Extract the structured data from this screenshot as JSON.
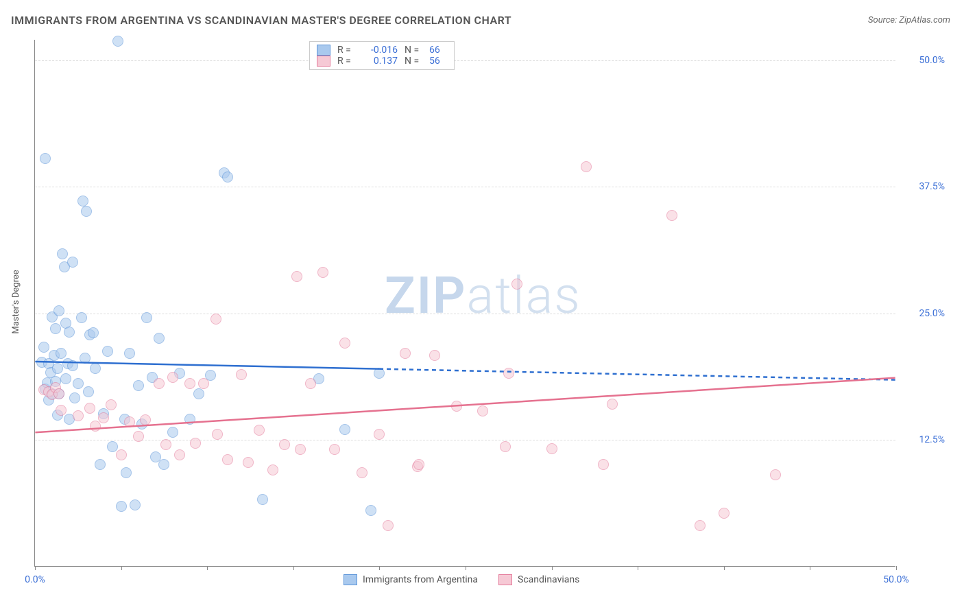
{
  "title": "IMMIGRANTS FROM ARGENTINA VS SCANDINAVIAN MASTER'S DEGREE CORRELATION CHART",
  "source": "Source: ZipAtlas.com",
  "y_axis_label": "Master's Degree",
  "watermark": {
    "prefix": "ZIP",
    "suffix": "atlas"
  },
  "chart": {
    "type": "scatter",
    "xlim": [
      0,
      50
    ],
    "ylim": [
      0,
      52
    ],
    "xtick_positions": [
      0,
      5,
      10,
      15,
      20,
      25,
      30,
      35,
      40,
      45,
      50
    ],
    "xtick_labels": {
      "0": "0.0%",
      "50": "50.0%"
    },
    "ytick_positions": [
      12.5,
      25.0,
      37.5,
      50.0
    ],
    "ytick_labels": [
      "12.5%",
      "25.0%",
      "37.5%",
      "50.0%"
    ],
    "grid_color": "#dddddd",
    "axis_color": "#888888",
    "background_color": "#ffffff",
    "marker_radius": 8,
    "marker_opacity": 0.55,
    "series": [
      {
        "name": "Immigrants from Argentina",
        "color_fill": "#a9c9ee",
        "color_stroke": "#5a93d8",
        "R": "-0.016",
        "N": "66",
        "trend": {
          "y_at_x0": 20.2,
          "y_at_x50": 18.4,
          "solid_until_x": 20,
          "color": "#2e6fd0",
          "width": 2.5
        },
        "points": [
          [
            0.4,
            20.1
          ],
          [
            0.5,
            21.6
          ],
          [
            0.6,
            17.5
          ],
          [
            0.6,
            40.2
          ],
          [
            0.7,
            18.1
          ],
          [
            0.8,
            20.0
          ],
          [
            0.8,
            16.4
          ],
          [
            0.9,
            19.1
          ],
          [
            1.0,
            24.6
          ],
          [
            1.0,
            17.0
          ],
          [
            1.1,
            20.8
          ],
          [
            1.2,
            23.4
          ],
          [
            1.2,
            18.2
          ],
          [
            1.3,
            19.5
          ],
          [
            1.3,
            14.9
          ],
          [
            1.4,
            17.0
          ],
          [
            1.4,
            25.2
          ],
          [
            1.5,
            21.0
          ],
          [
            1.6,
            30.8
          ],
          [
            1.7,
            29.5
          ],
          [
            1.8,
            24.0
          ],
          [
            1.8,
            18.5
          ],
          [
            1.9,
            20.0
          ],
          [
            2.0,
            23.1
          ],
          [
            2.0,
            14.5
          ],
          [
            2.2,
            30.0
          ],
          [
            2.2,
            19.8
          ],
          [
            2.3,
            16.6
          ],
          [
            2.5,
            18.0
          ],
          [
            2.7,
            24.5
          ],
          [
            2.8,
            36.0
          ],
          [
            2.9,
            20.5
          ],
          [
            3.0,
            35.0
          ],
          [
            3.1,
            17.2
          ],
          [
            3.2,
            22.8
          ],
          [
            3.4,
            23.0
          ],
          [
            3.5,
            19.5
          ],
          [
            3.8,
            10.0
          ],
          [
            4.0,
            15.0
          ],
          [
            4.2,
            21.2
          ],
          [
            4.5,
            11.8
          ],
          [
            4.8,
            51.8
          ],
          [
            5.0,
            5.9
          ],
          [
            5.2,
            14.5
          ],
          [
            5.3,
            9.2
          ],
          [
            5.5,
            21.0
          ],
          [
            5.8,
            6.0
          ],
          [
            6.0,
            17.8
          ],
          [
            6.2,
            14.0
          ],
          [
            6.5,
            24.5
          ],
          [
            6.8,
            18.6
          ],
          [
            7.0,
            10.8
          ],
          [
            7.2,
            22.5
          ],
          [
            7.5,
            10.0
          ],
          [
            8.0,
            13.2
          ],
          [
            8.4,
            19.0
          ],
          [
            9.0,
            14.5
          ],
          [
            9.5,
            17.0
          ],
          [
            10.2,
            18.8
          ],
          [
            11.0,
            38.8
          ],
          [
            11.2,
            38.4
          ],
          [
            13.2,
            6.6
          ],
          [
            16.5,
            18.5
          ],
          [
            18.0,
            13.5
          ],
          [
            19.5,
            5.5
          ],
          [
            20.0,
            19.0
          ]
        ]
      },
      {
        "name": "Scandinavians",
        "color_fill": "#f6c9d5",
        "color_stroke": "#e47a9a",
        "R": "0.137",
        "N": "56",
        "trend": {
          "y_at_x0": 13.2,
          "y_at_x50": 18.6,
          "solid_until_x": 50,
          "color": "#e5718f",
          "width": 2.5
        },
        "points": [
          [
            0.5,
            17.4
          ],
          [
            0.8,
            17.2
          ],
          [
            1.0,
            16.9
          ],
          [
            1.2,
            17.6
          ],
          [
            1.4,
            17.0
          ],
          [
            1.5,
            15.4
          ],
          [
            2.5,
            14.8
          ],
          [
            3.2,
            15.6
          ],
          [
            3.5,
            13.8
          ],
          [
            4.0,
            14.6
          ],
          [
            4.4,
            15.9
          ],
          [
            5.0,
            11.0
          ],
          [
            5.5,
            14.2
          ],
          [
            6.0,
            12.8
          ],
          [
            6.4,
            14.4
          ],
          [
            7.2,
            18.0
          ],
          [
            7.6,
            12.0
          ],
          [
            8.0,
            18.6
          ],
          [
            8.4,
            11.0
          ],
          [
            9.0,
            18.0
          ],
          [
            9.3,
            12.1
          ],
          [
            9.8,
            18.0
          ],
          [
            10.5,
            24.4
          ],
          [
            10.6,
            13.0
          ],
          [
            11.2,
            10.5
          ],
          [
            12.0,
            18.9
          ],
          [
            12.4,
            10.2
          ],
          [
            13.0,
            13.4
          ],
          [
            13.8,
            9.5
          ],
          [
            14.5,
            12.0
          ],
          [
            15.2,
            28.6
          ],
          [
            15.4,
            11.5
          ],
          [
            16.0,
            18.0
          ],
          [
            16.7,
            29.0
          ],
          [
            17.4,
            11.5
          ],
          [
            18.0,
            22.0
          ],
          [
            19.0,
            9.2
          ],
          [
            20.0,
            13.0
          ],
          [
            20.5,
            4.0
          ],
          [
            21.5,
            21.0
          ],
          [
            22.2,
            9.8
          ],
          [
            22.3,
            10.0
          ],
          [
            23.2,
            20.8
          ],
          [
            24.5,
            15.8
          ],
          [
            26.0,
            15.3
          ],
          [
            27.3,
            11.8
          ],
          [
            27.5,
            19.0
          ],
          [
            28.0,
            27.8
          ],
          [
            30.0,
            11.6
          ],
          [
            32.0,
            39.4
          ],
          [
            33.0,
            10.0
          ],
          [
            33.5,
            16.0
          ],
          [
            37.0,
            34.6
          ],
          [
            38.6,
            4.0
          ],
          [
            40.0,
            5.2
          ],
          [
            43.0,
            9.0
          ]
        ]
      }
    ]
  }
}
